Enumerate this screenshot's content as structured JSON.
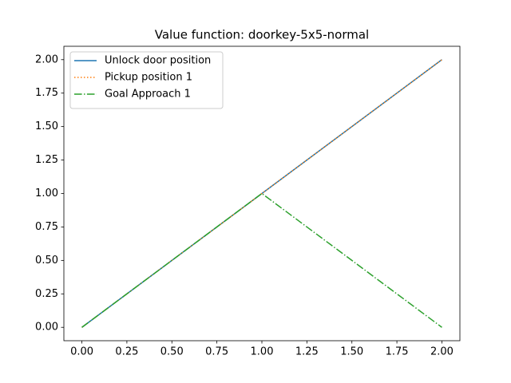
{
  "chart_data": {
    "type": "line",
    "title": "Value function: doorkey-5x5-normal",
    "x": [
      0,
      1,
      2
    ],
    "series": [
      {
        "name": "Unlock door position",
        "color": "#1f77b4",
        "style": "solid",
        "values": [
          0,
          1,
          2
        ]
      },
      {
        "name": "Pickup position 1",
        "color": "#ff7f0e",
        "style": "dotted",
        "values": [
          0,
          1,
          2
        ]
      },
      {
        "name": "Goal Approach 1",
        "color": "#2ca02c",
        "style": "dashdot",
        "values": [
          0,
          1,
          0
        ]
      }
    ],
    "xlim": [
      -0.1,
      2.1
    ],
    "ylim": [
      -0.1,
      2.1
    ],
    "xticks": [
      {
        "value": 0,
        "label": "0.00"
      },
      {
        "value": 0.25,
        "label": "0.25"
      },
      {
        "value": 0.5,
        "label": "0.50"
      },
      {
        "value": 0.75,
        "label": "0.75"
      },
      {
        "value": 1,
        "label": "1.00"
      },
      {
        "value": 1.25,
        "label": "1.25"
      },
      {
        "value": 1.5,
        "label": "1.50"
      },
      {
        "value": 1.75,
        "label": "1.75"
      },
      {
        "value": 2,
        "label": "2.00"
      }
    ],
    "yticks": [
      {
        "value": 0,
        "label": "0.00"
      },
      {
        "value": 0.25,
        "label": "0.25"
      },
      {
        "value": 0.5,
        "label": "0.50"
      },
      {
        "value": 0.75,
        "label": "0.75"
      },
      {
        "value": 1,
        "label": "1.00"
      },
      {
        "value": 1.25,
        "label": "1.25"
      },
      {
        "value": 1.5,
        "label": "1.50"
      },
      {
        "value": 1.75,
        "label": "1.75"
      },
      {
        "value": 2,
        "label": "2.00"
      }
    ],
    "grid": false,
    "legend": "upper-left"
  }
}
